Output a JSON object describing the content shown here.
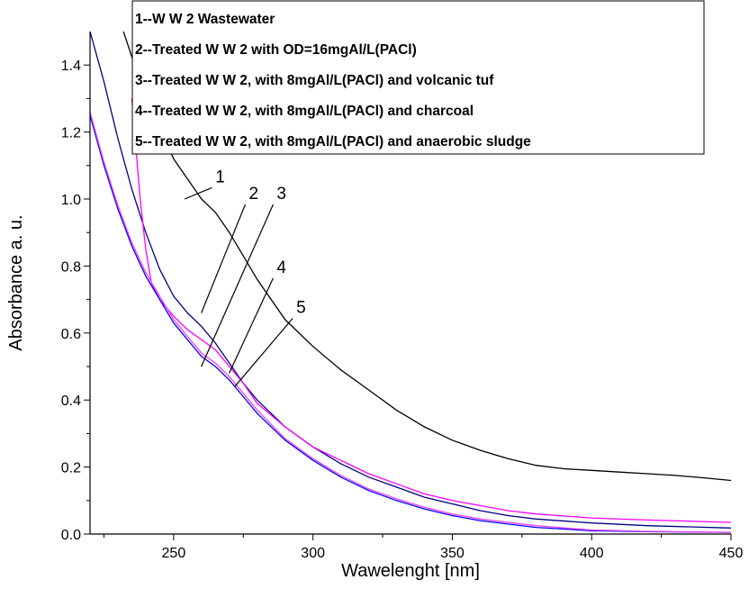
{
  "chart_data": {
    "type": "line",
    "xlabel": "Wawelenght [nm]",
    "ylabel": "Absorbance a. u.",
    "xlim": [
      220,
      450
    ],
    "ylim": [
      0,
      1.5
    ],
    "xticks": [
      250,
      300,
      350,
      400,
      450
    ],
    "yticks": [
      0.0,
      0.2,
      0.4,
      0.6,
      0.8,
      1.0,
      1.2,
      1.4
    ],
    "ytick_labels": [
      "0.0",
      "0.2",
      "0.4",
      "0.6",
      "0.8",
      "1.0",
      "1.2",
      "1.4"
    ],
    "grid": false,
    "legend_position": "top-right",
    "legend": [
      "1--W W 2 Wastewater",
      "2--Treated W W 2 with OD=16mgAl/L(PACl)",
      "3--Treated W W 2, with 8mgAl/L(PACl) and volcanic  tuf",
      "4--Treated W W 2, with 8mgAl/L(PACl) and  charcoal",
      "5--Treated W W 2, with 8mgAl/L(PACl) and anaerobic sludge"
    ],
    "series": [
      {
        "name": "1",
        "color": "#000000",
        "x": [
          232,
          240,
          250,
          255,
          260,
          265,
          270,
          275,
          280,
          290,
          300,
          310,
          320,
          330,
          340,
          350,
          360,
          370,
          380,
          390,
          400,
          410,
          420,
          430,
          440,
          450
        ],
        "y": [
          1.5,
          1.3,
          1.12,
          1.06,
          1.0,
          0.96,
          0.9,
          0.83,
          0.76,
          0.64,
          0.56,
          0.49,
          0.43,
          0.37,
          0.32,
          0.28,
          0.25,
          0.225,
          0.205,
          0.195,
          0.19,
          0.185,
          0.18,
          0.175,
          0.168,
          0.16
        ]
      },
      {
        "name": "2",
        "color": "#000080",
        "x": [
          220,
          225,
          230,
          235,
          240,
          245,
          250,
          255,
          260,
          265,
          270,
          275,
          280,
          290,
          300,
          310,
          320,
          330,
          340,
          350,
          360,
          370,
          380,
          400,
          420,
          450
        ],
        "y": [
          1.5,
          1.35,
          1.18,
          1.03,
          0.9,
          0.79,
          0.71,
          0.66,
          0.62,
          0.57,
          0.51,
          0.45,
          0.4,
          0.32,
          0.26,
          0.21,
          0.17,
          0.14,
          0.11,
          0.09,
          0.07,
          0.055,
          0.045,
          0.033,
          0.025,
          0.018
        ]
      },
      {
        "name": "3",
        "color": "#ff00ff",
        "x": [
          235,
          238,
          240,
          242,
          245,
          250,
          255,
          260,
          265,
          270,
          275,
          280,
          290,
          300,
          310,
          320,
          330,
          340,
          350,
          360,
          370,
          380,
          400,
          420,
          450
        ],
        "y": [
          1.3,
          1.0,
          0.85,
          0.75,
          0.7,
          0.65,
          0.61,
          0.58,
          0.55,
          0.5,
          0.45,
          0.39,
          0.32,
          0.26,
          0.22,
          0.18,
          0.15,
          0.12,
          0.1,
          0.085,
          0.07,
          0.06,
          0.048,
          0.042,
          0.035
        ]
      },
      {
        "name": "4",
        "color": "#0000ff",
        "x": [
          220,
          225,
          230,
          235,
          240,
          245,
          250,
          255,
          260,
          265,
          270,
          275,
          280,
          290,
          300,
          310,
          320,
          330,
          340,
          350,
          360,
          380,
          400,
          420,
          450
        ],
        "y": [
          1.25,
          1.1,
          0.97,
          0.86,
          0.77,
          0.7,
          0.63,
          0.58,
          0.53,
          0.5,
          0.46,
          0.41,
          0.36,
          0.28,
          0.22,
          0.17,
          0.13,
          0.1,
          0.075,
          0.055,
          0.04,
          0.02,
          0.01,
          0.007,
          0.005
        ]
      },
      {
        "name": "5",
        "color": "#ee44ee",
        "x": [
          220,
          225,
          230,
          235,
          240,
          245,
          250,
          255,
          260,
          265,
          270,
          275,
          280,
          290,
          300,
          310,
          320,
          330,
          340,
          350,
          360,
          380,
          400,
          420,
          450
        ],
        "y": [
          1.26,
          1.11,
          0.98,
          0.87,
          0.78,
          0.71,
          0.64,
          0.59,
          0.54,
          0.51,
          0.47,
          0.42,
          0.37,
          0.285,
          0.225,
          0.175,
          0.135,
          0.105,
          0.08,
          0.06,
          0.045,
          0.025,
          0.012,
          0.008,
          0.005
        ]
      }
    ],
    "annotations": [
      {
        "text": "1",
        "x": 265,
        "y": 1.05
      },
      {
        "text": "2",
        "x": 277,
        "y": 1.0
      },
      {
        "text": "3",
        "x": 287,
        "y": 1.0
      },
      {
        "text": "4",
        "x": 287,
        "y": 0.78
      },
      {
        "text": "5",
        "x": 294,
        "y": 0.66
      }
    ]
  }
}
